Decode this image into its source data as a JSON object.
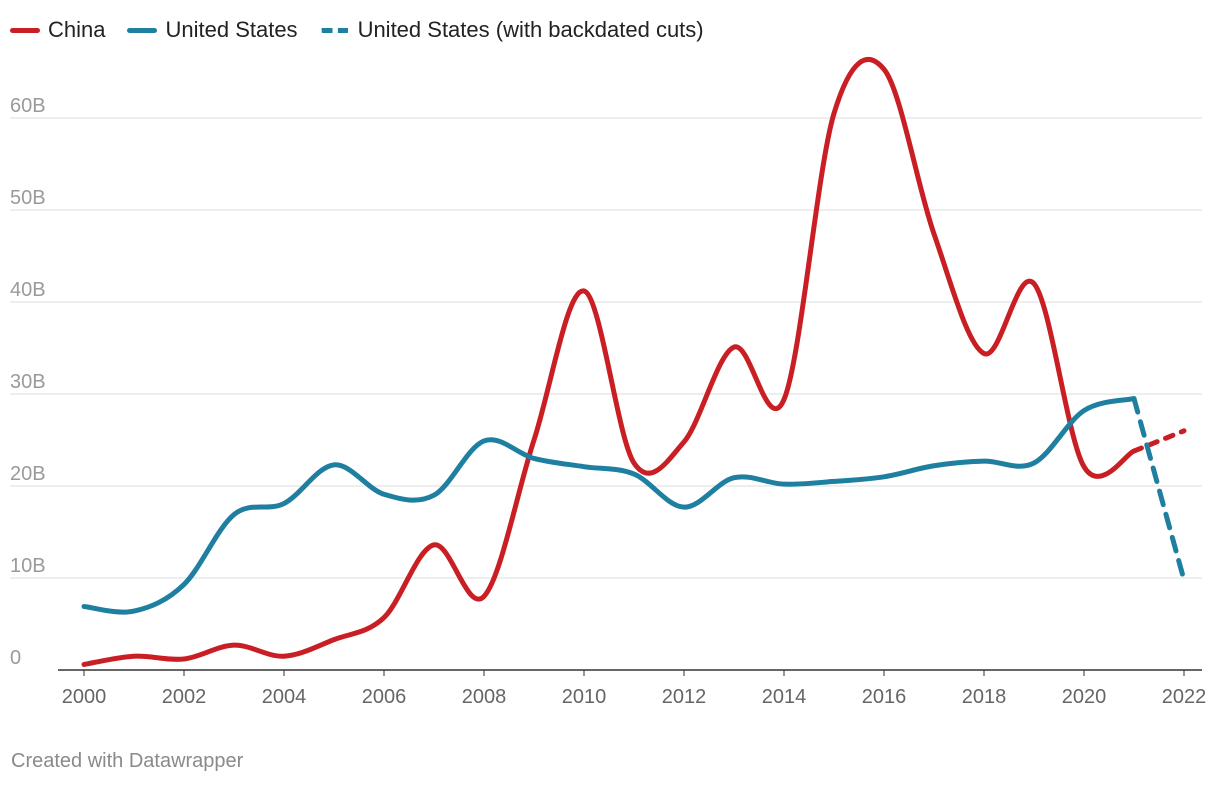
{
  "chart_data": {
    "type": "line",
    "title": "",
    "xlabel": "",
    "ylabel": "",
    "xlim": [
      2000,
      2022
    ],
    "ylim": [
      0,
      65
    ],
    "x_ticks": [
      2000,
      2002,
      2004,
      2006,
      2008,
      2010,
      2012,
      2014,
      2016,
      2018,
      2020,
      2022
    ],
    "x_tick_labels": [
      "2000",
      "2002",
      "2004",
      "2006",
      "2008",
      "2010",
      "2012",
      "2014",
      "2016",
      "2018",
      "2020",
      "2022"
    ],
    "y_ticks": [
      0,
      10,
      20,
      30,
      40,
      50,
      60
    ],
    "y_tick_labels": [
      "0",
      "10B",
      "20B",
      "30B",
      "40B",
      "50B",
      "60B"
    ],
    "grid": true,
    "legend_position": "top-left",
    "series": [
      {
        "name": "China",
        "color": "#c91f24",
        "x": [
          2000,
          2001,
          2002,
          2003,
          2004,
          2005,
          2006,
          2007,
          2008,
          2009,
          2010,
          2011,
          2012,
          2013,
          2014,
          2015,
          2016,
          2017,
          2018,
          2019,
          2020,
          2021
        ],
        "values": [
          0.6,
          1.5,
          1.2,
          2.7,
          1.5,
          3.3,
          5.7,
          13.6,
          8.0,
          25.0,
          41.2,
          22.5,
          24.8,
          35.1,
          29.4,
          60.5,
          65.3,
          47.4,
          34.4,
          42.0,
          22.1,
          23.8
        ],
        "projection": {
          "x": [
            2021,
            2022
          ],
          "values": [
            23.8,
            26.0
          ]
        }
      },
      {
        "name": "United States",
        "color": "#1e7fa0",
        "x": [
          2000,
          2001,
          2002,
          2003,
          2004,
          2005,
          2006,
          2007,
          2008,
          2009,
          2010,
          2011,
          2012,
          2013,
          2014,
          2015,
          2016,
          2017,
          2018,
          2019,
          2020,
          2021
        ],
        "values": [
          6.9,
          6.4,
          9.3,
          16.9,
          18.1,
          22.3,
          19.1,
          19.0,
          24.9,
          23.0,
          22.1,
          21.3,
          17.7,
          20.9,
          20.2,
          20.5,
          21.0,
          22.2,
          22.7,
          22.5,
          28.2,
          29.5
        ]
      },
      {
        "name": "United States (with backdated cuts)",
        "color": "#1e7fa0",
        "dashed": true,
        "x": [
          2021,
          2022
        ],
        "values": [
          29.5,
          9.8
        ]
      }
    ]
  },
  "legend": {
    "items": [
      {
        "label": "China",
        "color": "#c91f24"
      },
      {
        "label": "United States",
        "color": "#1e7fa0"
      },
      {
        "label": "United States (with backdated cuts)",
        "color": "#1e7fa0"
      }
    ]
  },
  "footer": {
    "credit": "Created with Datawrapper"
  }
}
